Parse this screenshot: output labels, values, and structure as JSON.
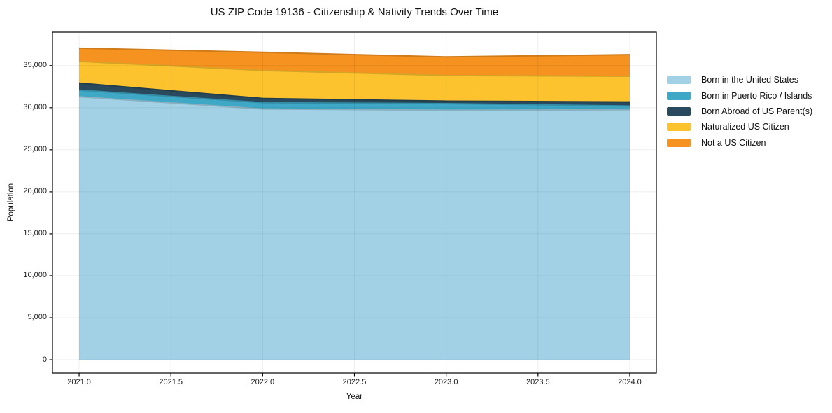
{
  "chart_data": {
    "type": "area",
    "stacked": true,
    "title": "US ZIP Code 19136 - Citizenship & Nativity Trends Over Time",
    "xlabel": "Year",
    "ylabel": "Population",
    "x": [
      2021,
      2022,
      2023,
      2024
    ],
    "series": [
      {
        "name": "Born in the United States",
        "color": "#a2d1e6",
        "values": [
          31300,
          29850,
          29700,
          29760
        ]
      },
      {
        "name": "Born in Puerto Rico / Islands",
        "color": "#3ea8c6",
        "values": [
          790,
          745,
          780,
          445
        ]
      },
      {
        "name": "Born Abroad of US Parent(s)",
        "color": "#294a5c",
        "values": [
          830,
          500,
          300,
          475
        ]
      },
      {
        "name": "Naturalized US Citizen",
        "color": "#fdc32f",
        "values": [
          2580,
          3330,
          3050,
          3050
        ]
      },
      {
        "name": "Not a US Citizen",
        "color": "#f6921f",
        "values": [
          1580,
          2160,
          2210,
          2570
        ]
      }
    ],
    "x_ticks": [
      2021.0,
      2021.5,
      2022.0,
      2022.5,
      2023.0,
      2023.5,
      2024.0
    ],
    "x_tick_labels": [
      "2021.0",
      "2021.5",
      "2022.0",
      "2022.5",
      "2023.0",
      "2023.5",
      "2024.0"
    ],
    "y_ticks": [
      0,
      5000,
      10000,
      15000,
      20000,
      25000,
      30000,
      35000
    ],
    "y_tick_labels": [
      "0",
      "5,000",
      "10,000",
      "15,000",
      "20,000",
      "25,000",
      "30,000",
      "35,000"
    ],
    "xlim": [
      2020.855,
      2024.145
    ],
    "ylim": [
      -1580,
      38980
    ],
    "grid": true,
    "legend_position": "center right",
    "axis_color": "#000000"
  }
}
